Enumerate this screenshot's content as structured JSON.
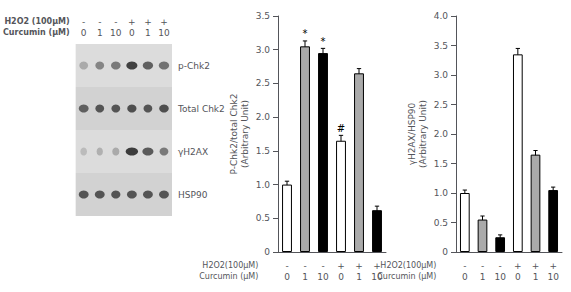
{
  "chart_data": [
    {
      "type": "heatmap",
      "xlabel": "H2O2 (100μM)\nCurcumin (μM)",
      "x": [
        "-\n0",
        "-\n1",
        "-\n10",
        "+\n0",
        "+\n1",
        "+\n10"
      ],
      "y": [
        "p-Chk2",
        "Total Chk2",
        "γH2AX",
        "HSP90"
      ],
      "values": [
        [
          0.65,
          0.5,
          0.45,
          0.22,
          0.35,
          0.42
        ],
        [
          0.35,
          0.3,
          0.3,
          0.28,
          0.3,
          0.28
        ],
        [
          0.72,
          0.68,
          0.65,
          0.2,
          0.32,
          0.45
        ],
        [
          0.3,
          0.3,
          0.3,
          0.3,
          0.3,
          0.3
        ]
      ],
      "widths": [
        [
          0.55,
          0.55,
          0.6,
          0.7,
          0.65,
          0.65
        ],
        [
          0.62,
          0.55,
          0.55,
          0.58,
          0.55,
          0.6
        ],
        [
          0.42,
          0.4,
          0.45,
          0.78,
          0.7,
          0.55
        ],
        [
          0.62,
          0.62,
          0.58,
          0.62,
          0.62,
          0.62
        ]
      ]
    },
    {
      "type": "bar",
      "ylabel": "P-Chk2/total Chk2\n(Arbitrary Unit)",
      "xlabel": "H2O2(100μM)\nCurcumin (μM)",
      "categories": [
        "-\n0",
        "-\n1",
        "-\n10",
        "+\n0",
        "+\n1",
        "+\n10"
      ],
      "values": [
        1.0,
        3.05,
        2.95,
        1.65,
        2.65,
        0.62
      ],
      "errors": [
        0.05,
        0.08,
        0.07,
        0.08,
        0.07,
        0.06
      ],
      "colors": [
        "white",
        "#aaaaaa",
        "black",
        "white",
        "#aaaaaa",
        "black"
      ],
      "ylim": [
        0,
        3.5
      ],
      "yticks": [
        0,
        0.5,
        {
          "value": 1.0,
          "label": "1.0"
        },
        1.5,
        {
          "value": 2.0,
          "label": "2.0"
        },
        2.5,
        {
          "value": 3.0,
          "label": "3.0"
        },
        3.5
      ],
      "grid": false,
      "annotations": [
        {
          "text": "*",
          "index": 1
        },
        {
          "text": "*",
          "index": 2
        },
        {
          "text": "#",
          "index": 3
        }
      ]
    },
    {
      "type": "bar",
      "ylabel": "γH2AX/HSP90\n(Arbitrary Unit)",
      "xlabel": "H2O2(100μM)\nCurcumin (μM)",
      "categories": [
        "-\n0",
        "-\n1",
        "-\n10",
        "+\n0",
        "+\n1",
        "+\n10"
      ],
      "values": [
        1.0,
        0.55,
        0.25,
        3.35,
        1.65,
        1.05
      ],
      "errors": [
        0.05,
        0.06,
        0.04,
        0.1,
        0.07,
        0.05
      ],
      "colors": [
        "white",
        "#aaaaaa",
        "black",
        "white",
        "#aaaaaa",
        "black"
      ],
      "ylim": [
        0,
        4.0
      ],
      "yticks": [
        0,
        0.5,
        {
          "value": 1.0,
          "label": "1.0"
        },
        1.5,
        {
          "value": 2.0,
          "label": "2.0"
        },
        2.5,
        {
          "value": 3.0,
          "label": "3.0"
        },
        3.5,
        {
          "value": 4.0,
          "label": "4.0"
        }
      ],
      "grid": false,
      "annotations": []
    }
  ]
}
